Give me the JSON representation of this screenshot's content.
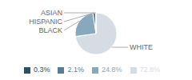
{
  "chart_data": {
    "type": "pie",
    "categories": [
      "WHITE",
      "BLACK",
      "HISPANIC",
      "ASIAN"
    ],
    "values": [
      72.8,
      24.8,
      2.1,
      0.3
    ],
    "value_labels": [
      "72.8%",
      "24.8%",
      "2.1%",
      "0.3%"
    ],
    "colors": [
      "#d6dce4",
      "#8aa8bc",
      "#5a7d96",
      "#2c506a"
    ],
    "legend": "bottom"
  }
}
